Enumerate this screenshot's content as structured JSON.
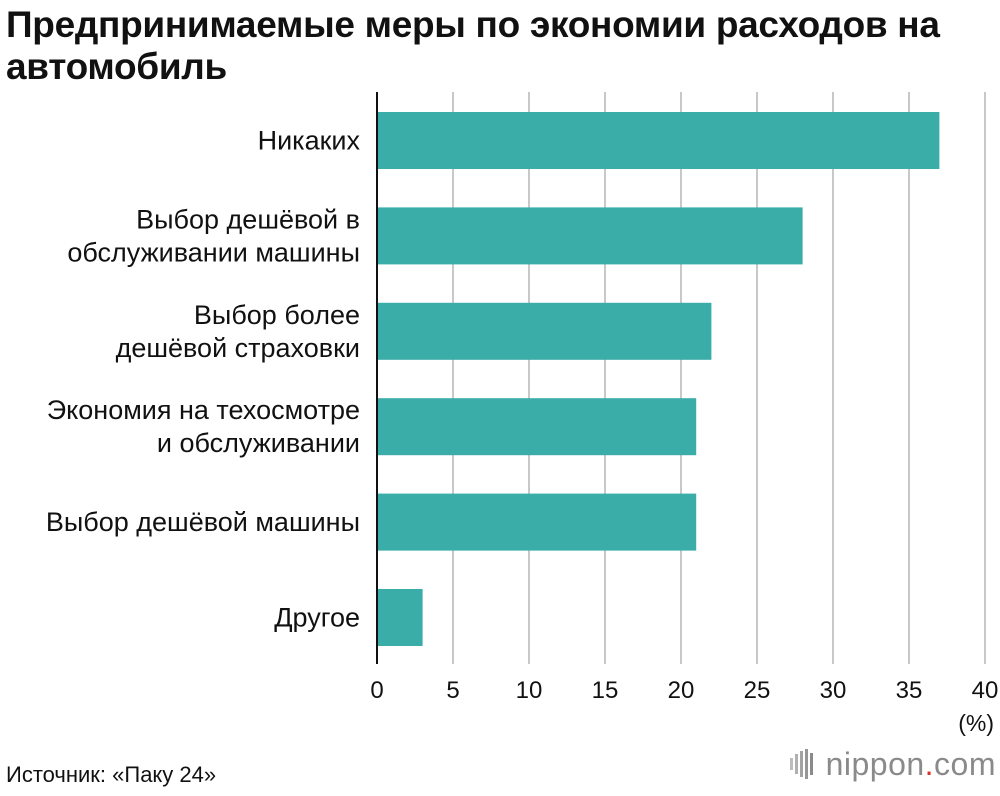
{
  "title": "Предпринимаемые меры по экономии расходов на автомобиль",
  "unit": "(%)",
  "source": "Источник: «Паку 24»",
  "logo": {
    "name": "nippon",
    "dot": ".",
    "suffix": "com"
  },
  "colors": {
    "bar": "#3aada9",
    "grid": "#c8c8c8",
    "axis": "#111111",
    "logo_gray": "#8a8a8a",
    "logo_red": "#d9342b"
  },
  "chart_data": {
    "type": "bar",
    "orientation": "horizontal",
    "title": "Предпринимаемые меры по экономии расходов на автомобиль",
    "categories": [
      [
        "Никаких"
      ],
      [
        "Выбор дешёвой в",
        "обслуживании машины"
      ],
      [
        "Выбор более",
        "дешёвой страховки"
      ],
      [
        "Экономия на техосмотре",
        "и обслуживании"
      ],
      [
        "Выбор дешёвой машины"
      ],
      [
        "Другое"
      ]
    ],
    "values": [
      37,
      28,
      22,
      21,
      21,
      3
    ],
    "xlabel": "(%)",
    "xlim": [
      0,
      40
    ],
    "xticks": [
      "0",
      "5",
      "10",
      "15",
      "20",
      "25",
      "30",
      "35",
      "40"
    ],
    "tick_values": [
      0,
      5,
      10,
      15,
      20,
      25,
      30,
      35,
      40
    ],
    "grid": true
  }
}
